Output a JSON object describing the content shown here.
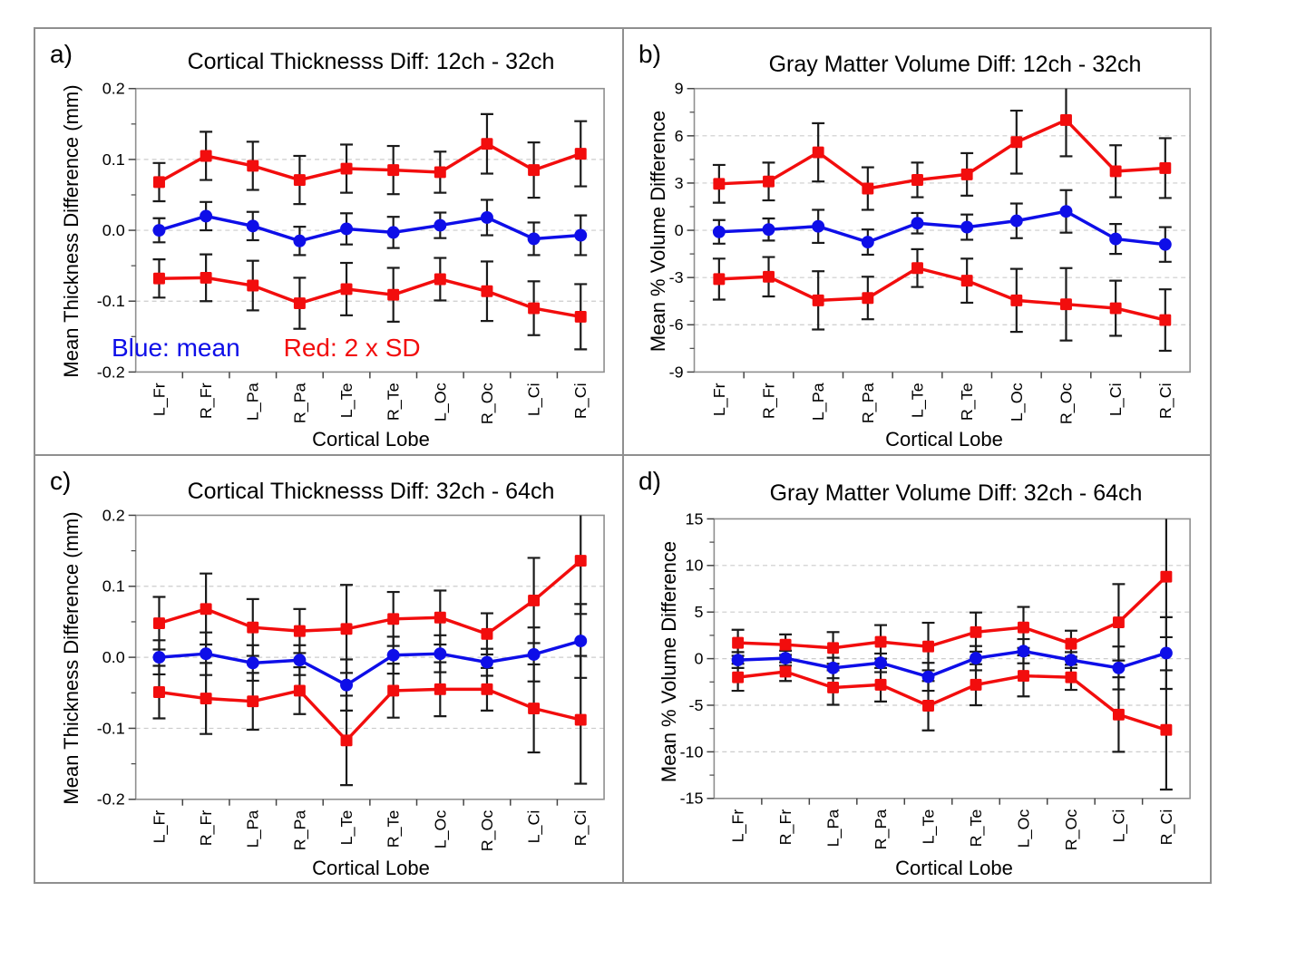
{
  "figure": {
    "legend": {
      "blue_label": "Blue: mean",
      "red_label": "Red: 2 x SD"
    },
    "colors": {
      "red": "#f20d0d",
      "blue": "#0e0ee8",
      "error_bar": "#1a1a1a",
      "grid": "#cccccc",
      "frame": "#8f8f8f",
      "tick": "#444444"
    }
  },
  "chart_data": [
    {
      "type": "line",
      "letter": "a)",
      "title": "Cortical Thicknesss Diff: 12ch - 32ch",
      "xlabel": "Cortical Lobe",
      "ylabel": "Mean Thickness Difference (mm)",
      "categories": [
        "L_Fr",
        "R_Fr",
        "L_Pa",
        "R_Pa",
        "L_Te",
        "R_Te",
        "L_Oc",
        "R_Oc",
        "L_Ci",
        "R_Ci"
      ],
      "ylim": [
        -0.2,
        0.2
      ],
      "yticks": [
        0.2,
        0.1,
        0,
        -0.1,
        -0.2
      ],
      "ytick_labels": [
        "0.2",
        "0.1",
        "0.0",
        "-0.1",
        "-0.2"
      ],
      "grid": true,
      "legend_position": "inside-bottom-left",
      "series": [
        {
          "name": "+2 x SD",
          "color": "red",
          "marker": "square",
          "values": [
            0.068,
            0.105,
            0.091,
            0.071,
            0.087,
            0.085,
            0.082,
            0.122,
            0.085,
            0.108
          ],
          "err": [
            0.027,
            0.034,
            0.034,
            0.034,
            0.034,
            0.034,
            0.029,
            0.042,
            0.039,
            0.046
          ]
        },
        {
          "name": "mean",
          "color": "blue",
          "marker": "circle",
          "values": [
            0.0,
            0.02,
            0.006,
            -0.015,
            0.002,
            -0.003,
            0.007,
            0.018,
            -0.012,
            -0.007
          ],
          "err": [
            0.017,
            0.02,
            0.02,
            0.02,
            0.022,
            0.022,
            0.018,
            0.025,
            0.023,
            0.028
          ]
        },
        {
          "name": "-2 x SD",
          "color": "red",
          "marker": "square",
          "values": [
            -0.068,
            -0.067,
            -0.078,
            -0.103,
            -0.083,
            -0.091,
            -0.069,
            -0.086,
            -0.11,
            -0.122
          ],
          "err": [
            0.027,
            0.033,
            0.035,
            0.036,
            0.037,
            0.038,
            0.03,
            0.042,
            0.038,
            0.046
          ]
        }
      ]
    },
    {
      "type": "line",
      "letter": "b)",
      "title": "Gray Matter Volume Diff: 12ch - 32ch",
      "xlabel": "Cortical Lobe",
      "ylabel": "Mean % Volume Difference",
      "categories": [
        "L_Fr",
        "R_Fr",
        "L_Pa",
        "R_Pa",
        "L_Te",
        "R_Te",
        "L_Oc",
        "R_Oc",
        "L_Ci",
        "R_Ci"
      ],
      "ylim": [
        -9,
        9
      ],
      "yticks": [
        9,
        6,
        3,
        0,
        -3,
        -6,
        -9
      ],
      "ytick_labels": [
        "9",
        "6",
        "3",
        "0",
        "-3",
        "-6",
        "-9"
      ],
      "grid": true,
      "legend_position": "none",
      "series": [
        {
          "name": "+2 x SD",
          "color": "red",
          "marker": "square",
          "values": [
            2.95,
            3.1,
            4.95,
            2.65,
            3.2,
            3.55,
            5.6,
            7.0,
            3.75,
            3.95
          ],
          "err": [
            1.2,
            1.2,
            1.85,
            1.35,
            1.1,
            1.35,
            2.0,
            2.3,
            1.65,
            1.9
          ]
        },
        {
          "name": "mean",
          "color": "blue",
          "marker": "circle",
          "values": [
            -0.1,
            0.05,
            0.25,
            -0.75,
            0.45,
            0.2,
            0.6,
            1.2,
            -0.55,
            -0.9
          ],
          "err": [
            0.75,
            0.7,
            1.05,
            0.8,
            0.65,
            0.8,
            1.1,
            1.35,
            0.95,
            1.1
          ]
        },
        {
          "name": "-2 x SD",
          "color": "red",
          "marker": "square",
          "values": [
            -3.1,
            -2.95,
            -4.45,
            -4.3,
            -2.4,
            -3.2,
            -4.45,
            -4.7,
            -4.95,
            -5.7
          ],
          "err": [
            1.3,
            1.25,
            1.85,
            1.35,
            1.2,
            1.4,
            2.0,
            2.3,
            1.75,
            1.95
          ]
        }
      ]
    },
    {
      "type": "line",
      "letter": "c)",
      "title": "Cortical Thicknesss Diff: 32ch - 64ch",
      "xlabel": "Cortical Lobe",
      "ylabel": "Mean Thickness Difference (mm)",
      "categories": [
        "L_Fr",
        "R_Fr",
        "L_Pa",
        "R_Pa",
        "L_Te",
        "R_Te",
        "L_Oc",
        "R_Oc",
        "L_Ci",
        "R_Ci"
      ],
      "ylim": [
        -0.2,
        0.2
      ],
      "yticks": [
        0.2,
        0.1,
        0,
        -0.1,
        -0.2
      ],
      "ytick_labels": [
        "0.2",
        "0.1",
        "0.0",
        "-0.1",
        "-0.2"
      ],
      "grid": true,
      "legend_position": "none",
      "series": [
        {
          "name": "+2 x SD",
          "color": "red",
          "marker": "square",
          "values": [
            0.048,
            0.068,
            0.042,
            0.037,
            0.04,
            0.054,
            0.056,
            0.033,
            0.08,
            0.136
          ],
          "err": [
            0.037,
            0.05,
            0.04,
            0.031,
            0.062,
            0.038,
            0.038,
            0.029,
            0.06,
            0.075
          ]
        },
        {
          "name": "mean",
          "color": "blue",
          "marker": "circle",
          "values": [
            0.0,
            0.005,
            -0.008,
            -0.004,
            -0.039,
            0.003,
            0.005,
            -0.007,
            0.004,
            0.023
          ],
          "err": [
            0.024,
            0.03,
            0.025,
            0.021,
            0.036,
            0.026,
            0.026,
            0.019,
            0.038,
            0.052
          ]
        },
        {
          "name": "-2 x SD",
          "color": "red",
          "marker": "square",
          "values": [
            -0.049,
            -0.058,
            -0.062,
            -0.047,
            -0.117,
            -0.047,
            -0.045,
            -0.045,
            -0.072,
            -0.088
          ],
          "err": [
            0.037,
            0.05,
            0.04,
            0.033,
            0.063,
            0.038,
            0.038,
            0.03,
            0.062,
            0.09
          ]
        }
      ]
    },
    {
      "type": "line",
      "letter": "d)",
      "title": "Gray Matter Volume Diff: 32ch - 64ch",
      "xlabel": "Cortical Lobe",
      "ylabel": "Mean % Volume Difference",
      "categories": [
        "L_Fr",
        "R_Fr",
        "L_Pa",
        "R_Pa",
        "L_Te",
        "R_Te",
        "L_Oc",
        "R_Oc",
        "L_Ci",
        "R_Ci"
      ],
      "ylim": [
        -15,
        15
      ],
      "yticks": [
        15,
        10,
        5,
        0,
        -5,
        -10,
        -15
      ],
      "ytick_labels": [
        "15",
        "10",
        "5",
        "0",
        "-5",
        "-10",
        "-15"
      ],
      "grid": true,
      "legend_position": "none",
      "series": [
        {
          "name": "+2 x SD",
          "color": "red",
          "marker": "square",
          "values": [
            1.7,
            1.5,
            1.15,
            1.8,
            1.3,
            2.85,
            3.35,
            1.6,
            3.9,
            8.8
          ],
          "err": [
            1.4,
            1.1,
            1.7,
            1.8,
            2.55,
            2.1,
            2.2,
            1.4,
            4.1,
            6.5
          ]
        },
        {
          "name": "mean",
          "color": "blue",
          "marker": "circle",
          "values": [
            -0.15,
            0.05,
            -1.0,
            -0.45,
            -1.95,
            0.05,
            0.8,
            -0.15,
            -1.0,
            0.6
          ],
          "err": [
            0.85,
            0.8,
            1.1,
            1.0,
            1.5,
            1.3,
            1.3,
            0.85,
            2.3,
            3.85
          ]
        },
        {
          "name": "-2 x SD",
          "color": "red",
          "marker": "square",
          "values": [
            -2.0,
            -1.4,
            -3.1,
            -2.8,
            -5.05,
            -2.8,
            -1.85,
            -2.0,
            -6.0,
            -7.65
          ],
          "err": [
            1.45,
            1.0,
            1.85,
            1.8,
            2.65,
            2.2,
            2.2,
            1.35,
            4.0,
            6.4
          ]
        }
      ]
    }
  ]
}
